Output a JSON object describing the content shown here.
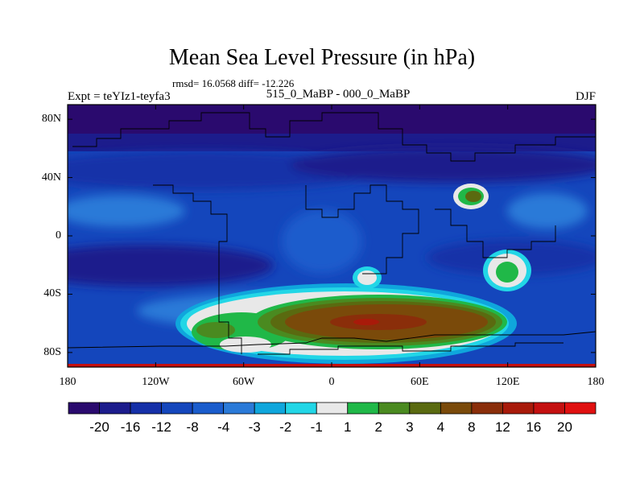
{
  "header": {
    "title": "Mean Sea Level Pressure (in hPa)",
    "stats": "rmsd= 16.0568 diff= -12.226",
    "experiment": "Expt = teYIz1-teyfa3",
    "subtitle": "515_0_MaBP - 000_0_MaBP",
    "season": "DJF"
  },
  "map": {
    "lat_ticks": [
      "80N",
      "40N",
      "0",
      "40S",
      "80S"
    ],
    "lon_ticks": [
      "180",
      "120W",
      "60W",
      "0",
      "60E",
      "120E",
      "180"
    ],
    "lat_range": [
      -90,
      90
    ],
    "lon_range": [
      -180,
      180
    ]
  },
  "colorbar": {
    "labels": [
      "-20",
      "-16",
      "-12",
      "-8",
      "-4",
      "-3",
      "-2",
      "-1",
      "1",
      "2",
      "3",
      "4",
      "8",
      "12",
      "16",
      "20"
    ],
    "colors": [
      "#2a0a6e",
      "#1c1c8c",
      "#1530a8",
      "#1446bc",
      "#1a5ccc",
      "#2a7ad8",
      "#0fa6dc",
      "#22d6e6",
      "#e8e8e8",
      "#20b848",
      "#4a8a20",
      "#5a6a10",
      "#7a4a0a",
      "#8a2e0a",
      "#a81a0a",
      "#c41010",
      "#e01010"
    ]
  }
}
